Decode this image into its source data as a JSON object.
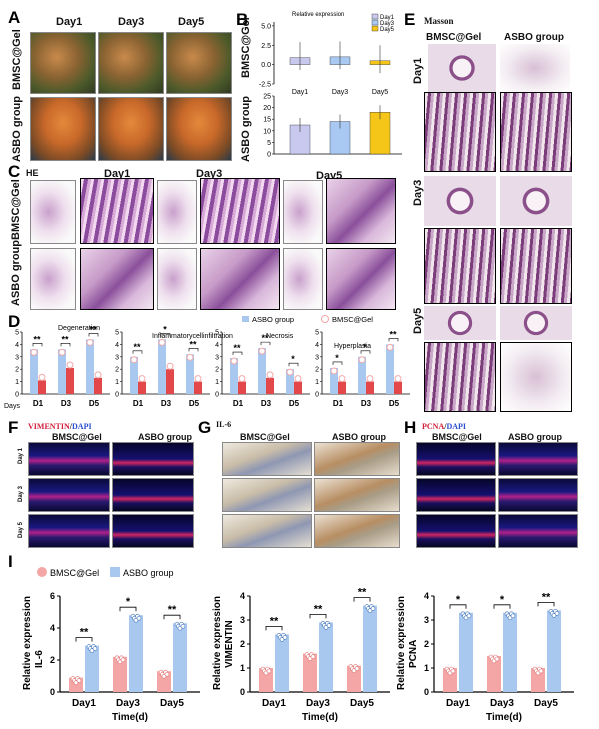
{
  "panels": {
    "A": {
      "letter": "A",
      "cols": [
        "Day1",
        "Day3",
        "Day5"
      ],
      "rows": [
        "BMSC@Gel",
        "ASBO group"
      ]
    },
    "B": {
      "letter": "B",
      "title": "Relative expression",
      "legend": [
        "Day1",
        "Day3",
        "Day5"
      ],
      "ylabel_top": "BMSC@Gel",
      "ylabel_bottom": "ASBO group"
    },
    "C": {
      "letter": "C",
      "stain": "HE",
      "cols": [
        "Day1",
        "Day3",
        "Day5"
      ],
      "rows": [
        "BMSC@Gel",
        "ASBO group"
      ]
    },
    "D": {
      "letter": "D",
      "legend": [
        "ASBO group",
        "BMSC@Gel"
      ],
      "subtitles": [
        "Degeneration",
        "Inflammatorycellinfiltration",
        "Necrosis",
        "Hyperplasia"
      ],
      "days_label": "Days"
    },
    "E": {
      "letter": "E",
      "stain": "Masson",
      "cols": [
        "BMSC@Gel",
        "ASBO group"
      ],
      "rows": [
        "Day1",
        "Day3",
        "Day5"
      ]
    },
    "F": {
      "letter": "F",
      "stain_a": "VIMENTIN",
      "stain_sep": "/",
      "stain_b": "DAPI",
      "cols": [
        "BMSC@Gel",
        "ASBO group"
      ],
      "rows": [
        "Day 1",
        "Day 3",
        "Day 5"
      ]
    },
    "G": {
      "letter": "G",
      "stain": "IL-6",
      "cols": [
        "BMSC@Gel",
        "ASBO group"
      ]
    },
    "H": {
      "letter": "H",
      "stain_a": "PCNA",
      "stain_sep": "/",
      "stain_b": "DAPI",
      "cols": [
        "BMSC@Gel",
        "ASBO group"
      ]
    },
    "I": {
      "letter": "I",
      "legend": [
        "BMSC@Gel",
        "ASBO group"
      ],
      "xlabel": "Time(d)"
    }
  },
  "colors": {
    "pink": "#f4a6a6",
    "blue": "#a8c8ef",
    "yellow": "#f5c518",
    "lavender": "#c9c9f0",
    "lightblue": "#a9c9f2"
  },
  "chart_data": [
    {
      "type": "bar",
      "id": "B_top",
      "ylabel": "BMSC@Gel",
      "title": "Relative expression",
      "categories": [
        "Day1",
        "Day3",
        "Day5"
      ],
      "values": [
        0.9,
        1.0,
        0.5
      ],
      "yticks": [
        "0.0",
        "2.5",
        "5.0",
        "-2.5"
      ],
      "ylim": [
        -2.5,
        5.5
      ]
    },
    {
      "type": "bar",
      "id": "B_bottom",
      "ylabel": "ASBO group",
      "categories": [
        "Day1",
        "Day3",
        "Day5"
      ],
      "values": [
        12.5,
        14.0,
        18.0
      ],
      "yticks": [
        "0",
        "5",
        "10",
        "15",
        "20",
        "25"
      ],
      "ylim": [
        0,
        25
      ]
    },
    {
      "type": "bar",
      "id": "D",
      "categories": [
        "D1",
        "D3",
        "D5"
      ],
      "groups": [
        {
          "title": "Degeneration",
          "asbo": [
            3.6,
            3.6,
            4.4
          ],
          "bmsc": [
            1.1,
            2.1,
            1.3
          ],
          "sig": [
            "**",
            "**",
            "**"
          ],
          "yticks": [
            "0",
            "1",
            "2",
            "3",
            "4",
            "5"
          ]
        },
        {
          "title": "Inflammatorycellinfiltration",
          "asbo": [
            3.0,
            4.4,
            3.2
          ],
          "bmsc": [
            1.0,
            2.0,
            1.0
          ],
          "sig": [
            "**",
            "*",
            "**"
          ],
          "yticks": [
            "0",
            "1",
            "2",
            "3",
            "4",
            "5"
          ]
        },
        {
          "title": "Necrosis",
          "asbo": [
            2.9,
            3.7,
            2.0
          ],
          "bmsc": [
            1.0,
            1.3,
            1.0
          ],
          "sig": [
            "**",
            "**",
            "*"
          ],
          "yticks": [
            "0",
            "1",
            "2",
            "3",
            "4",
            "5"
          ]
        },
        {
          "title": "Hyperplasia",
          "asbo": [
            2.1,
            3.0,
            4.0
          ],
          "bmsc": [
            1.0,
            1.0,
            1.0
          ],
          "sig": [
            "*",
            "*",
            "**"
          ],
          "yticks": [
            "0",
            "1",
            "2",
            "3",
            "4",
            "5"
          ]
        }
      ]
    },
    {
      "type": "bar",
      "id": "I",
      "categories": [
        "Day1",
        "Day3",
        "Day5"
      ],
      "xlabel": "Time(d)",
      "groups": [
        {
          "ylabel_a": "Relative expression",
          "ylabel_b": "IL-6",
          "bmsc": [
            0.9,
            2.2,
            1.3
          ],
          "asbo": [
            2.9,
            4.8,
            4.3
          ],
          "sig": [
            "**",
            "*",
            "**"
          ],
          "ylim": [
            0,
            6
          ],
          "yticks": [
            "0",
            "2",
            "4",
            "6"
          ]
        },
        {
          "ylabel_a": "Relative expression",
          "ylabel_b": "VIMENTIN",
          "bmsc": [
            1.0,
            1.6,
            1.1
          ],
          "asbo": [
            2.4,
            2.9,
            3.6
          ],
          "sig": [
            "**",
            "**",
            "**"
          ],
          "ylim": [
            0,
            4
          ],
          "yticks": [
            "0",
            "1",
            "2",
            "3",
            "4"
          ]
        },
        {
          "ylabel_a": "Relative expression",
          "ylabel_b": "PCNA",
          "bmsc": [
            1.0,
            1.5,
            1.0
          ],
          "asbo": [
            3.3,
            3.3,
            3.4
          ],
          "sig": [
            "*",
            "*",
            "**"
          ],
          "ylim": [
            0,
            4
          ],
          "yticks": [
            "0",
            "1",
            "2",
            "3",
            "4"
          ]
        }
      ]
    }
  ]
}
